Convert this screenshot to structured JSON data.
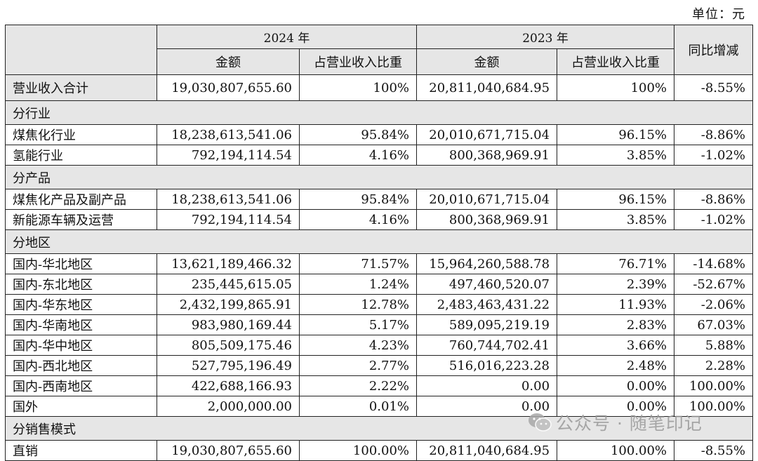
{
  "unit": "单位：元",
  "header": {
    "year_2024": "2024 年",
    "year_2023": "2023 年",
    "amount": "金额",
    "share": "占营业收入比重",
    "yoy": "同比增减"
  },
  "total": {
    "label": "营业收入合计",
    "amount_2024": "19,030,807,655.60",
    "share_2024": "100%",
    "amount_2023": "20,811,040,684.95",
    "share_2023": "100%",
    "yoy": "-8.55%"
  },
  "sections": [
    {
      "title": "分行业",
      "rows": [
        {
          "label": "煤焦化行业",
          "amount_2024": "18,238,613,541.06",
          "share_2024": "95.84%",
          "amount_2023": "20,010,671,715.04",
          "share_2023": "96.15%",
          "yoy": "-8.86%"
        },
        {
          "label": "氢能行业",
          "amount_2024": "792,194,114.54",
          "share_2024": "4.16%",
          "amount_2023": "800,368,969.91",
          "share_2023": "3.85%",
          "yoy": "-1.02%"
        }
      ]
    },
    {
      "title": "分产品",
      "rows": [
        {
          "label": "煤焦化产品及副产品",
          "amount_2024": "18,238,613,541.06",
          "share_2024": "95.84%",
          "amount_2023": "20,010,671,715.04",
          "share_2023": "96.15%",
          "yoy": "-8.86%"
        },
        {
          "label": "新能源车辆及运营",
          "amount_2024": "792,194,114.54",
          "share_2024": "4.16%",
          "amount_2023": "800,368,969.91",
          "share_2023": "3.85%",
          "yoy": "-1.02%"
        }
      ]
    },
    {
      "title": "分地区",
      "rows": [
        {
          "label": "国内-华北地区",
          "amount_2024": "13,621,189,466.32",
          "share_2024": "71.57%",
          "amount_2023": "15,964,260,588.78",
          "share_2023": "76.71%",
          "yoy": "-14.68%"
        },
        {
          "label": "国内-东北地区",
          "amount_2024": "235,445,615.05",
          "share_2024": "1.24%",
          "amount_2023": "497,460,520.07",
          "share_2023": "2.39%",
          "yoy": "-52.67%"
        },
        {
          "label": "国内-华东地区",
          "amount_2024": "2,432,199,865.91",
          "share_2024": "12.78%",
          "amount_2023": "2,483,463,431.22",
          "share_2023": "11.93%",
          "yoy": "-2.06%"
        },
        {
          "label": "国内-华南地区",
          "amount_2024": "983,980,169.44",
          "share_2024": "5.17%",
          "amount_2023": "589,095,219.19",
          "share_2023": "2.83%",
          "yoy": "67.03%"
        },
        {
          "label": "国内-华中地区",
          "amount_2024": "805,509,175.46",
          "share_2024": "4.23%",
          "amount_2023": "760,744,702.41",
          "share_2023": "3.66%",
          "yoy": "5.88%"
        },
        {
          "label": "国内-西北地区",
          "amount_2024": "527,795,196.49",
          "share_2024": "2.77%",
          "amount_2023": "516,016,223.28",
          "share_2023": "2.48%",
          "yoy": "2.28%"
        },
        {
          "label": "国内-西南地区",
          "amount_2024": "422,688,166.93",
          "share_2024": "2.22%",
          "amount_2023": "0.00",
          "share_2023": "0.00%",
          "yoy": "100.00%"
        },
        {
          "label": "国外",
          "amount_2024": "2,000,000.00",
          "share_2024": "0.01%",
          "amount_2023": "0.00",
          "share_2023": "0.00%",
          "yoy": "100.00%"
        }
      ]
    },
    {
      "title": "分销售模式",
      "rows": [
        {
          "label": "直销",
          "amount_2024": "19,030,807,655.60",
          "share_2024": "100.00%",
          "amount_2023": "20,811,040,684.95",
          "share_2023": "100.00%",
          "yoy": "-8.55%"
        }
      ]
    }
  ],
  "watermark": {
    "text": "公众号 · 随笔印记",
    "icon": "wechat-icon"
  }
}
